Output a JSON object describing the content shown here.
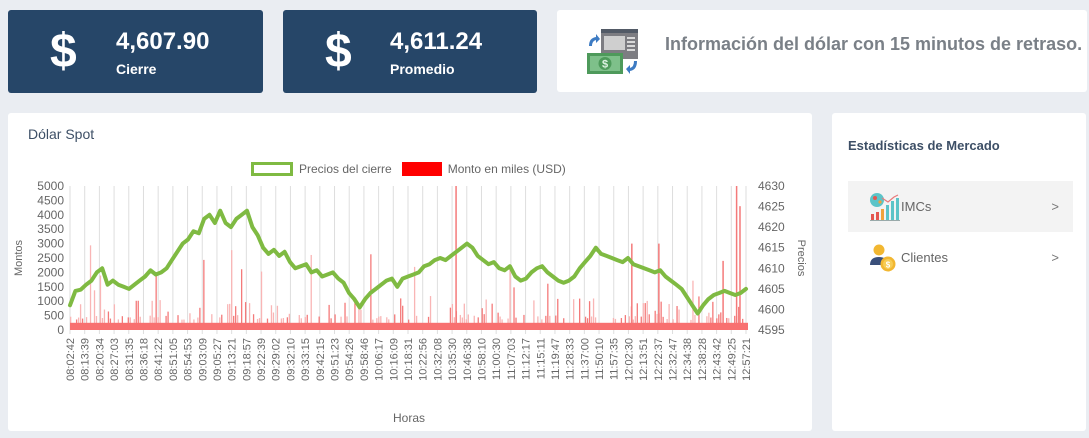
{
  "stat_cards": {
    "cierre": {
      "symbol": "$",
      "value": "4,607.90",
      "label": "Cierre",
      "bg": "#264668"
    },
    "promedio": {
      "symbol": "$",
      "value": "4,611.24",
      "label": "Promedio",
      "bg": "#264668"
    }
  },
  "info": {
    "icon": "money-exchange-icon",
    "text": "Información del dólar con 15 minutos de retraso."
  },
  "chart_panel": {
    "title": "Dólar Spot"
  },
  "stats_panel": {
    "title": "Estadísticas de Mercado",
    "items": [
      {
        "label": "IMCs",
        "icon": "bar-chart-icon",
        "chevron": ">"
      },
      {
        "label": "Clientes",
        "icon": "client-money-icon",
        "chevron": ">"
      }
    ]
  },
  "chart_data": {
    "type": "bar+line",
    "title": "Dólar Spot",
    "xlabel": "Horas",
    "ylabel_left": "Montos",
    "ylabel_right": "Precios",
    "legend": [
      {
        "name": "Precios del cierre",
        "type": "line",
        "color": "#7fba42"
      },
      {
        "name": "Monto en miles (USD)",
        "type": "bar",
        "color": "#ff0000"
      }
    ],
    "legend_position": "top",
    "grid": "vertical",
    "y_left": {
      "range": [
        0,
        5000
      ],
      "ticks": [
        0,
        500,
        1000,
        1500,
        2000,
        2500,
        3000,
        3500,
        4000,
        4500,
        5000
      ]
    },
    "y_right": {
      "range": [
        4595,
        4630
      ],
      "ticks": [
        4595,
        4600,
        4605,
        4610,
        4615,
        4620,
        4625,
        4630
      ]
    },
    "x_ticks": [
      "08:02:42",
      "08:13:39",
      "08:20:34",
      "08:27:03",
      "08:31:35",
      "08:36:18",
      "08:41:22",
      "08:51:05",
      "08:54:53",
      "09:03:09",
      "09:05:27",
      "09:13:21",
      "09:18:57",
      "09:22:39",
      "09:29:02",
      "09:32:10",
      "09:33:15",
      "09:42:15",
      "09:51:23",
      "09:54:26",
      "09:58:46",
      "10:06:17",
      "10:16:09",
      "10:18:31",
      "10:22:56",
      "10:32:08",
      "10:35:30",
      "10:46:38",
      "10:58:10",
      "11:00:30",
      "11:07:03",
      "11:12:17",
      "11:15:11",
      "11:19:47",
      "11:28:33",
      "11:37:00",
      "11:50:10",
      "11:57:35",
      "12:02:30",
      "12:13:51",
      "12:22:37",
      "12:32:47",
      "12:34:38",
      "12:38:28",
      "12:43:42",
      "12:49:25",
      "12:57:21"
    ],
    "price_series": {
      "name": "Precios del cierre",
      "values": [
        4601,
        4604.5,
        4604.8,
        4606,
        4607,
        4609,
        4610,
        4606,
        4607,
        4606,
        4605.5,
        4605,
        4606,
        4607,
        4608,
        4609.5,
        4608.5,
        4609,
        4610,
        4612,
        4614,
        4616,
        4617,
        4619,
        4618.5,
        4622,
        4623,
        4621,
        4624,
        4621,
        4620,
        4622,
        4623,
        4624,
        4620,
        4618,
        4615,
        4613.5,
        4614.5,
        4613,
        4614,
        4611.5,
        4610,
        4610.5,
        4611,
        4609,
        4609.5,
        4608,
        4608.5,
        4609,
        4607.5,
        4606.5,
        4604,
        4602.5,
        4600.5,
        4602.5,
        4604,
        4605,
        4606,
        4607,
        4607.5,
        4605.5,
        4607.5,
        4608,
        4608.5,
        4609,
        4610.5,
        4611,
        4612,
        4612.5,
        4612,
        4613,
        4614,
        4615,
        4616,
        4615,
        4613,
        4612,
        4611,
        4611.5,
        4610,
        4609.5,
        4610.5,
        4608,
        4607,
        4607.5,
        4609,
        4610,
        4610.5,
        4609,
        4608,
        4607,
        4606.5,
        4607,
        4608,
        4610,
        4611.5,
        4613,
        4615,
        4613.5,
        4613,
        4612.5,
        4612,
        4611.5,
        4612.5,
        4611,
        4610.5,
        4610,
        4609.5,
        4609,
        4609.5,
        4608,
        4607,
        4606,
        4605,
        4603,
        4601,
        4599,
        4601,
        4602.5,
        4603.5,
        4604,
        4604.5,
        4604,
        4603.5,
        4604,
        4605
      ]
    },
    "volume_series": {
      "name": "Monto en miles (USD)",
      "baseline": 250,
      "note": "Mostly small trades (~250-500); spikes up to ~3000, max ~5000 near 12:57"
    }
  }
}
